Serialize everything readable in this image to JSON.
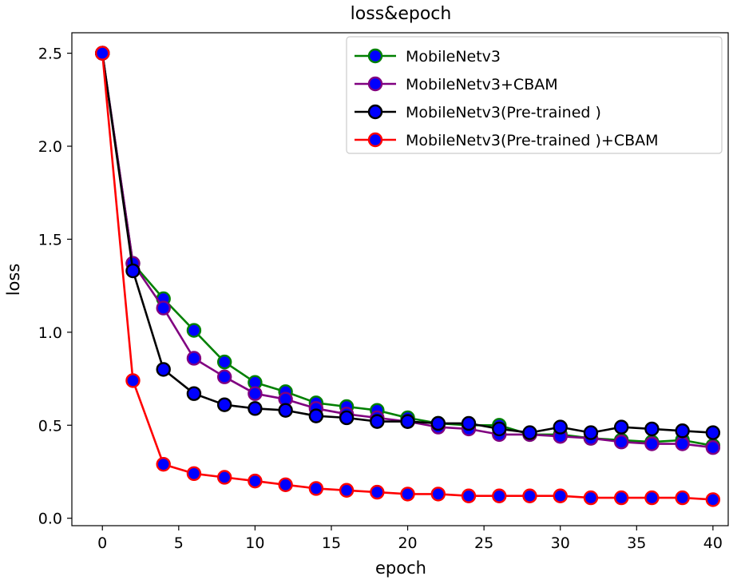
{
  "chart_data": {
    "type": "line",
    "title": "loss&epoch",
    "xlabel": "epoch",
    "ylabel": "loss",
    "xlim": [
      -2,
      41
    ],
    "ylim": [
      -0.04,
      2.61
    ],
    "xticks": [
      0,
      5,
      10,
      15,
      20,
      25,
      30,
      35,
      40
    ],
    "xtick_labels": [
      "0",
      "5",
      "10",
      "15",
      "20",
      "25",
      "30",
      "35",
      "40"
    ],
    "yticks": [
      0.0,
      0.5,
      1.0,
      1.5,
      2.0,
      2.5
    ],
    "ytick_labels": [
      "0.0",
      "0.5",
      "1.0",
      "1.5",
      "2.0",
      "2.5"
    ],
    "grid": false,
    "legend_position": "top-right",
    "marker_face_color": "#0000ff",
    "x": [
      0,
      2,
      4,
      6,
      8,
      10,
      12,
      14,
      16,
      18,
      20,
      22,
      24,
      26,
      28,
      30,
      32,
      34,
      36,
      38,
      40
    ],
    "series": [
      {
        "name": "MobileNetv3",
        "color": "#008000",
        "values": [
          2.5,
          1.37,
          1.18,
          1.01,
          0.84,
          0.73,
          0.68,
          0.62,
          0.6,
          0.58,
          0.54,
          0.51,
          0.5,
          0.5,
          0.45,
          0.45,
          0.43,
          0.42,
          0.41,
          0.42,
          0.39
        ]
      },
      {
        "name": "MobileNetv3+CBAM",
        "color": "#800080",
        "values": [
          2.5,
          1.37,
          1.13,
          0.86,
          0.76,
          0.67,
          0.64,
          0.59,
          0.56,
          0.54,
          0.52,
          0.49,
          0.48,
          0.45,
          0.45,
          0.44,
          0.43,
          0.41,
          0.4,
          0.4,
          0.38
        ]
      },
      {
        "name": "MobileNetv3(Pre-trained )",
        "color": "#000000",
        "values": [
          2.5,
          1.33,
          0.8,
          0.67,
          0.61,
          0.59,
          0.58,
          0.55,
          0.54,
          0.52,
          0.52,
          0.51,
          0.51,
          0.48,
          0.46,
          0.49,
          0.46,
          0.49,
          0.48,
          0.47,
          0.46
        ]
      },
      {
        "name": "MobileNetv3(Pre-trained )+CBAM",
        "color": "#ff0000",
        "values": [
          2.5,
          0.74,
          0.29,
          0.24,
          0.22,
          0.2,
          0.18,
          0.16,
          0.15,
          0.14,
          0.13,
          0.13,
          0.12,
          0.12,
          0.12,
          0.12,
          0.11,
          0.11,
          0.11,
          0.11,
          0.1
        ]
      }
    ]
  }
}
